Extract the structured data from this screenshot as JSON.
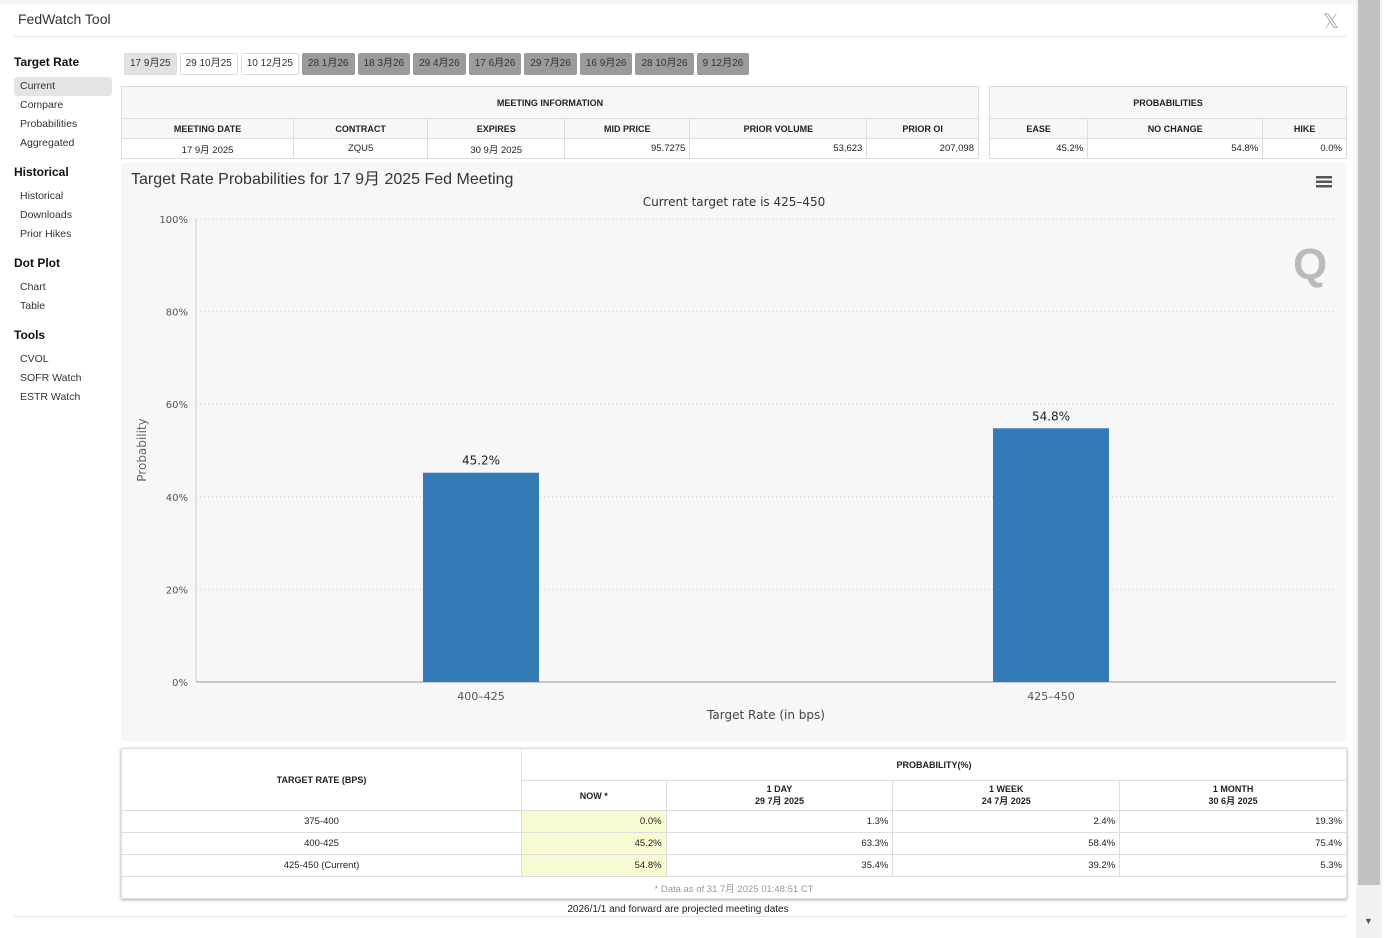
{
  "header": {
    "title": "FedWatch Tool",
    "close_icon": "x-close-icon"
  },
  "sidebar": [
    {
      "heading": "Target Rate",
      "items": [
        "Current",
        "Compare",
        "Probabilities",
        "Aggregated"
      ]
    },
    {
      "heading": "Historical",
      "items": [
        "Historical",
        "Downloads",
        "Prior Hikes"
      ]
    },
    {
      "heading": "Dot Plot",
      "items": [
        "Chart",
        "Table"
      ]
    },
    {
      "heading": "Tools",
      "items": [
        "CVOL",
        "SOFR Watch",
        "ESTR Watch"
      ]
    }
  ],
  "tabs": [
    "17 9月25",
    "29 10月25",
    "10 12月25",
    "28 1月26",
    "18 3月26",
    "29 4月26",
    "17 6月26",
    "29 7月26",
    "16 9月26",
    "28 10月26",
    "9 12月26"
  ],
  "meeting_info": {
    "title": "MEETING INFORMATION",
    "headers": [
      "MEETING DATE",
      "CONTRACT",
      "EXPIRES",
      "MID PRICE",
      "PRIOR VOLUME",
      "PRIOR OI"
    ],
    "values": [
      "17 9月 2025",
      "ZQU5",
      "30 9月 2025",
      "95.7275",
      "53,623",
      "207,098"
    ]
  },
  "probabilities": {
    "title": "PROBABILITIES",
    "headers": [
      "EASE",
      "NO CHANGE",
      "HIKE"
    ],
    "values": [
      "45.2%",
      "54.8%",
      "0.0%"
    ]
  },
  "chart_data": {
    "type": "bar",
    "title": "Target Rate Probabilities for 17 9月 2025 Fed Meeting",
    "subtitle": "Current target rate is 425–450",
    "categories": [
      "400–425",
      "425–450"
    ],
    "values": [
      45.2,
      54.8
    ],
    "data_labels": [
      "45.2%",
      "54.8%"
    ],
    "xlabel": "Target Rate (in bps)",
    "ylabel": "Probability",
    "ylim": [
      0,
      100
    ],
    "yticks": [
      "0%",
      "20%",
      "40%",
      "60%",
      "80%",
      "100%"
    ],
    "color": "#337ab7",
    "grid": true
  },
  "bottom_table": {
    "col0": "TARGET RATE (BPS)",
    "group": "PROBABILITY(%)",
    "cols": [
      {
        "l1": "NOW *",
        "l2": ""
      },
      {
        "l1": "1 DAY",
        "l2": "29 7月 2025"
      },
      {
        "l1": "1 WEEK",
        "l2": "24 7月 2025"
      },
      {
        "l1": "1 MONTH",
        "l2": "30 6月 2025"
      }
    ],
    "rows": [
      [
        "375-400",
        "0.0%",
        "1.3%",
        "2.4%",
        "19.3%"
      ],
      [
        "400-425",
        "45.2%",
        "63.3%",
        "58.4%",
        "75.4%"
      ],
      [
        "425-450 (Current)",
        "54.8%",
        "35.4%",
        "39.2%",
        "5.3%"
      ]
    ],
    "note": "* Data as of 31 7月 2025 01:48:51 CT"
  },
  "footer": "2026/1/1 and forward are projected meeting dates"
}
